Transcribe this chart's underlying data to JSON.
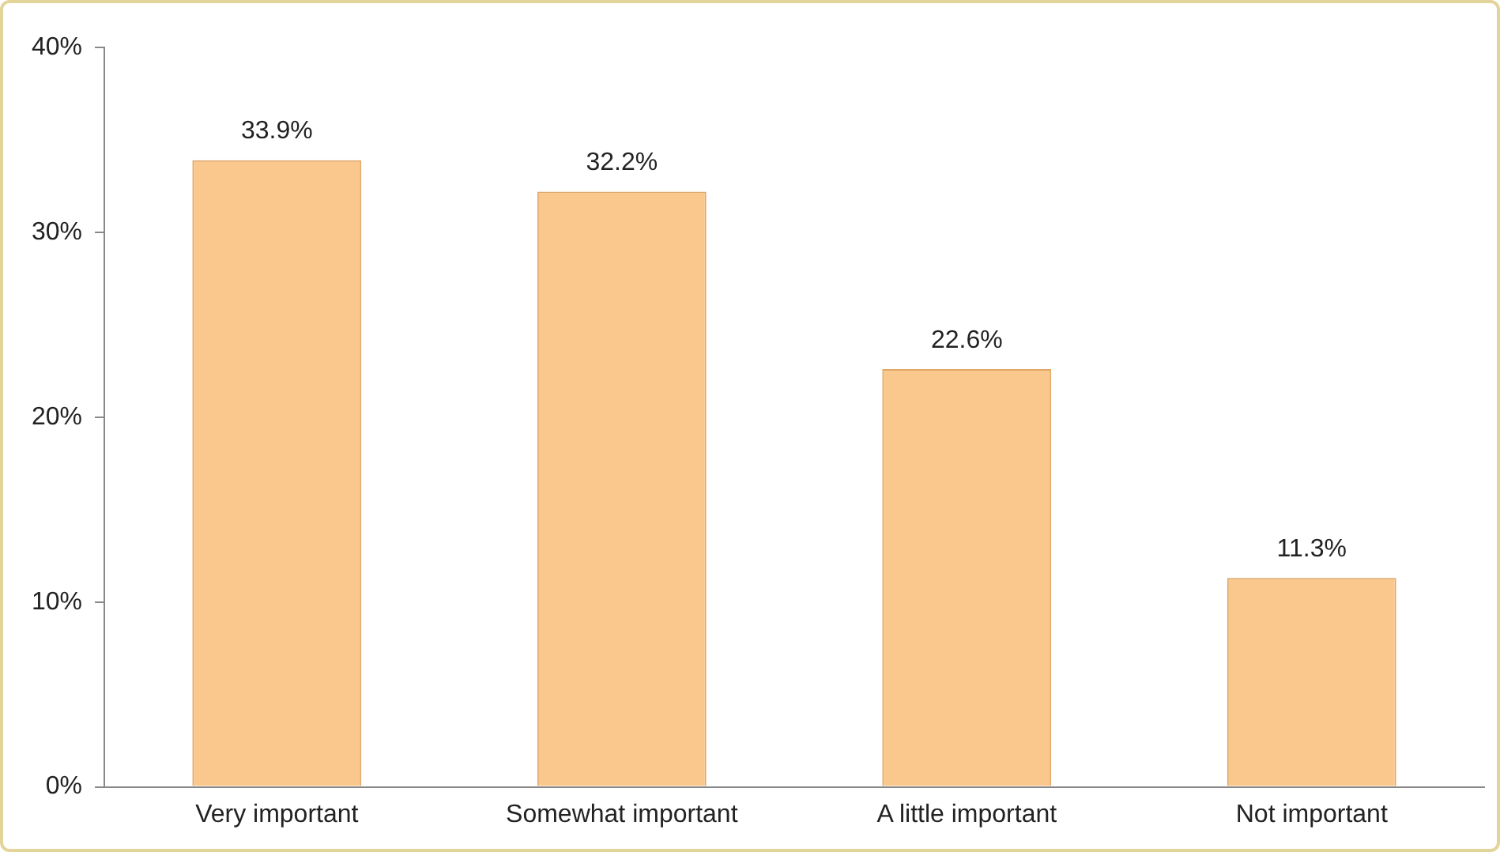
{
  "chart_data": {
    "type": "bar",
    "categories": [
      "Very important",
      "Somewhat important",
      "A little important",
      "Not important"
    ],
    "values": [
      33.9,
      32.2,
      22.6,
      11.3
    ],
    "value_labels": [
      "33.9%",
      "32.2%",
      "22.6%",
      "11.3%"
    ],
    "color": "#fac88c",
    "ylim": [
      0,
      40
    ],
    "yticks": [
      {
        "value": 0,
        "label": "0%"
      },
      {
        "value": 10,
        "label": "10%"
      },
      {
        "value": 20,
        "label": "20%"
      },
      {
        "value": 30,
        "label": "30%"
      },
      {
        "value": 40,
        "label": "40%"
      }
    ],
    "grid": false,
    "legend": false
  }
}
